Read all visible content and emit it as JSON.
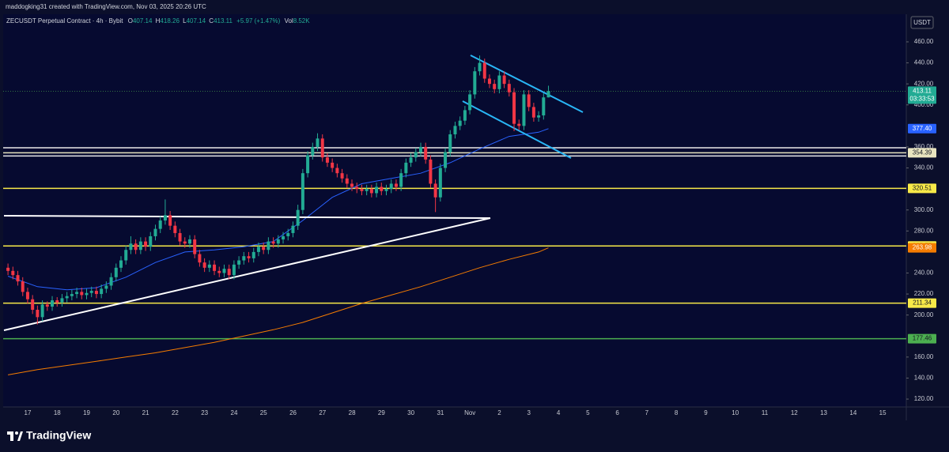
{
  "header": {
    "credit": "maddogking31 created with TradingView.com, Nov 03, 2025 20:26 UTC"
  },
  "footer": {
    "brand": "TradingView"
  },
  "chart_data": {
    "type": "candlestick",
    "title": "ZECUSDT Perpetual Contract · 4h · Bybit",
    "ohlc_header": {
      "o_label": "O",
      "open": 407.14,
      "h_label": "H",
      "high": 418.26,
      "l_label": "L",
      "low": 407.14,
      "c_label": "C",
      "close": 413.11,
      "change": "+5.97 (+1.47%)",
      "vol_label": "Vol",
      "volume": "8.52K"
    },
    "currency": "USDT",
    "x_labels": [
      "17",
      "18",
      "19",
      "20",
      "21",
      "22",
      "23",
      "24",
      "25",
      "26",
      "27",
      "28",
      "29",
      "30",
      "31",
      "Nov",
      "2",
      "3",
      "4",
      "5",
      "6",
      "7",
      "8",
      "9",
      "10",
      "11",
      "12",
      "13",
      "14",
      "15"
    ],
    "ylim": [
      112.5,
      486.3
    ],
    "yticks": [
      {
        "value": 460,
        "label": "460.00"
      },
      {
        "value": 440,
        "label": "440.00"
      },
      {
        "value": 420,
        "label": "420.00"
      },
      {
        "value": 400,
        "label": "400.00"
      },
      {
        "value": 360,
        "label": "360.00"
      },
      {
        "value": 340,
        "label": "340.00"
      },
      {
        "value": 300,
        "label": "300.00"
      },
      {
        "value": 280,
        "label": "280.00"
      },
      {
        "value": 240,
        "label": "240.00"
      },
      {
        "value": 220,
        "label": "220.00"
      },
      {
        "value": 200,
        "label": "200.00"
      },
      {
        "value": 160,
        "label": "160.00"
      },
      {
        "value": 140,
        "label": "140.00"
      },
      {
        "value": 120,
        "label": "120.00"
      }
    ],
    "up_color": "#22ab94",
    "down_color": "#f23645",
    "candles": {
      "open": [
        245,
        242,
        238,
        232,
        222,
        215,
        205,
        198,
        210,
        208,
        214,
        212,
        216,
        218,
        220,
        222,
        219,
        221,
        223,
        220,
        225,
        228,
        236,
        245,
        252,
        262,
        268,
        262,
        270,
        265,
        275,
        282,
        290,
        295,
        285,
        278,
        270,
        268,
        272,
        258,
        250,
        245,
        248,
        242,
        240,
        244,
        238,
        248,
        252,
        256,
        254,
        260,
        265,
        262,
        270,
        268,
        272,
        275,
        278,
        285,
        300,
        335,
        352,
        360,
        368,
        350,
        345,
        340,
        335,
        330,
        325,
        322,
        320,
        318,
        320,
        316,
        322,
        318,
        320,
        325,
        322,
        335,
        345,
        350,
        355,
        360,
        348,
        325,
        312,
        340,
        355,
        372,
        380,
        385,
        395,
        410,
        432,
        440,
        425,
        420,
        415,
        428,
        420,
        412,
        382,
        380,
        410,
        398,
        388,
        390,
        407.14
      ],
      "high": [
        249,
        246,
        242,
        236,
        226,
        219,
        209,
        214,
        213,
        218,
        217,
        220,
        222,
        224,
        226,
        226,
        225,
        227,
        227,
        229,
        232,
        240,
        249,
        256,
        266,
        275,
        272,
        274,
        274,
        279,
        286,
        294,
        310,
        299,
        289,
        282,
        274,
        276,
        276,
        262,
        254,
        252,
        252,
        246,
        248,
        248,
        252,
        256,
        260,
        260,
        264,
        269,
        269,
        274,
        274,
        276,
        279,
        282,
        289,
        305,
        339,
        356,
        364,
        373,
        372,
        354,
        349,
        344,
        339,
        334,
        329,
        326,
        324,
        324,
        324,
        326,
        326,
        324,
        329,
        329,
        339,
        349,
        354,
        359,
        364,
        364,
        352,
        329,
        344,
        359,
        376,
        384,
        389,
        399,
        414,
        436,
        447,
        444,
        429,
        424,
        432,
        432,
        424,
        416,
        386,
        414,
        414,
        402,
        394,
        411,
        418.26
      ],
      "low": [
        238,
        234,
        228,
        218,
        211,
        201,
        191,
        194,
        204,
        204,
        208,
        208,
        212,
        214,
        216,
        215,
        215,
        217,
        216,
        216,
        221,
        224,
        232,
        241,
        248,
        258,
        258,
        258,
        261,
        261,
        271,
        278,
        286,
        281,
        274,
        266,
        264,
        264,
        254,
        246,
        241,
        241,
        238,
        236,
        236,
        234,
        234,
        244,
        248,
        250,
        250,
        256,
        258,
        258,
        264,
        264,
        268,
        271,
        274,
        281,
        296,
        331,
        348,
        356,
        346,
        341,
        336,
        331,
        326,
        321,
        318,
        316,
        314,
        314,
        312,
        312,
        314,
        314,
        316,
        318,
        318,
        331,
        341,
        346,
        351,
        344,
        321,
        298,
        308,
        336,
        351,
        368,
        376,
        381,
        391,
        406,
        428,
        421,
        416,
        411,
        411,
        416,
        408,
        375,
        376,
        376,
        394,
        384,
        384,
        386,
        407.14
      ],
      "close": [
        242,
        238,
        232,
        222,
        215,
        205,
        198,
        210,
        208,
        214,
        212,
        216,
        218,
        220,
        222,
        219,
        221,
        223,
        220,
        225,
        228,
        236,
        245,
        252,
        262,
        268,
        262,
        270,
        265,
        275,
        282,
        290,
        295,
        285,
        278,
        270,
        268,
        272,
        258,
        250,
        245,
        248,
        242,
        240,
        244,
        238,
        248,
        252,
        256,
        254,
        260,
        265,
        262,
        270,
        268,
        272,
        275,
        278,
        285,
        300,
        335,
        352,
        360,
        368,
        350,
        345,
        340,
        335,
        330,
        325,
        322,
        320,
        318,
        320,
        316,
        322,
        318,
        320,
        325,
        322,
        335,
        345,
        350,
        355,
        360,
        348,
        325,
        312,
        340,
        355,
        372,
        380,
        385,
        395,
        410,
        432,
        440,
        425,
        420,
        415,
        428,
        420,
        412,
        382,
        380,
        410,
        398,
        388,
        390,
        407.14,
        413.11
      ]
    },
    "last_price": 413.11,
    "countdown": "03:33:53",
    "moving_averages": [
      {
        "color": "#2962ff",
        "index": [
          0,
          6,
          12,
          18,
          24,
          30,
          36,
          42,
          48,
          54,
          60,
          66,
          72,
          78,
          84,
          90,
          96,
          102,
          108,
          110
        ],
        "values": [
          237,
          227,
          224,
          226,
          236,
          250,
          260,
          262,
          265,
          270,
          290,
          312,
          325,
          330,
          335,
          345,
          358,
          370,
          374,
          377.4
        ],
        "value_labels": [
          null,
          null,
          null,
          null,
          null,
          null,
          null,
          null,
          null,
          null,
          null,
          null,
          null,
          null,
          null,
          null,
          null,
          null,
          null,
          "377.40"
        ]
      },
      {
        "color": "#f57c00",
        "index": [
          0,
          6,
          12,
          18,
          24,
          30,
          36,
          42,
          48,
          54,
          60,
          66,
          72,
          78,
          84,
          90,
          96,
          102,
          108,
          110
        ],
        "values": [
          143,
          148,
          152,
          156,
          160,
          164,
          169,
          174,
          180,
          186,
          193,
          202,
          211,
          219,
          227,
          236,
          245,
          253,
          260,
          263.98
        ]
      }
    ],
    "levels": [
      {
        "value": 354.39,
        "color": "#e8e4c0"
      },
      {
        "value": 320.51,
        "color": "#f7e948"
      },
      {
        "value": 265.75,
        "color": "#f7e948"
      },
      {
        "value": 211.34,
        "color": "#f7e948"
      },
      {
        "value": 177.46,
        "color": "#4caf50"
      }
    ],
    "zone_lines": [
      {
        "value": 359.2,
        "color": "#e8e8e8"
      },
      {
        "value": 351.4,
        "color": "#e8e8e8"
      }
    ]
  }
}
